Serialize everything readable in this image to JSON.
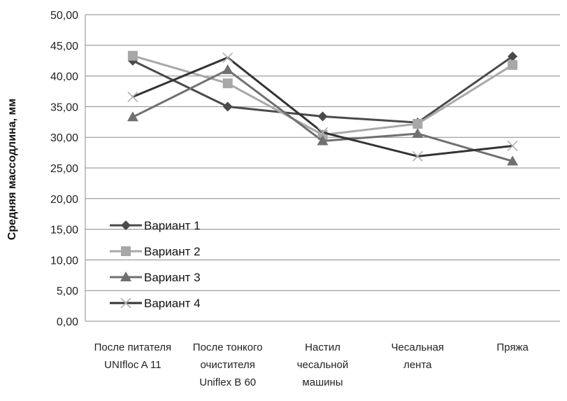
{
  "chart_data": {
    "type": "line",
    "title": "",
    "xlabel": "",
    "ylabel": "Средняя массодлина, мм",
    "ylim": [
      0,
      50
    ],
    "yticks": [
      "0,00",
      "5,00",
      "10,00",
      "15,00",
      "20,00",
      "25,00",
      "30,00",
      "35,00",
      "40,00",
      "45,00",
      "50,00"
    ],
    "grid": true,
    "legend_position": "bottom-left",
    "categories": [
      [
        "После питателя",
        "UNIfloc A 11"
      ],
      [
        "После тонкого",
        "очистителя",
        "Uniflex B 60"
      ],
      [
        "Настил",
        "чесальной",
        "машины"
      ],
      [
        "Чесальная",
        "лента"
      ],
      [
        "Пряжа"
      ]
    ],
    "series": [
      {
        "name": "Вариант 1",
        "values": [
          42.5,
          35.0,
          33.4,
          32.4,
          43.2
        ],
        "marker": "diamond",
        "color": "#4a4a4a"
      },
      {
        "name": "Вариант 2",
        "values": [
          43.3,
          38.8,
          30.4,
          32.2,
          41.8
        ],
        "marker": "square",
        "color": "#a8a8a8"
      },
      {
        "name": "Вариант 3",
        "values": [
          33.3,
          41.0,
          29.4,
          30.6,
          26.1
        ],
        "marker": "triangle",
        "color": "#707070"
      },
      {
        "name": "Вариант 4",
        "values": [
          36.6,
          43.0,
          30.8,
          26.9,
          28.6
        ],
        "marker": "x",
        "color": "#333333"
      }
    ]
  }
}
